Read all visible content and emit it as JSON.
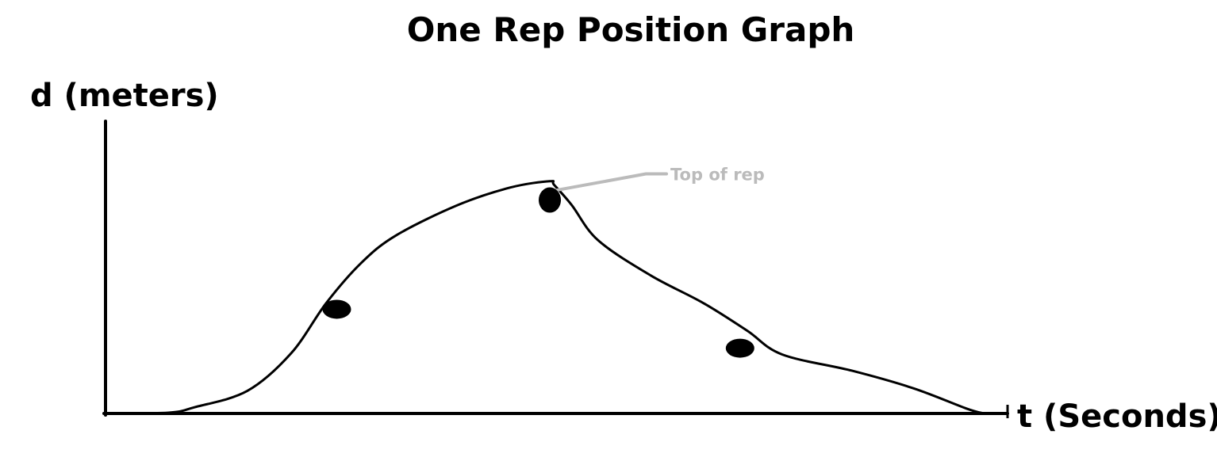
{
  "chart_data": {
    "type": "line",
    "title": "One Rep Position Graph",
    "xlabel": "t (Seconds)",
    "ylabel": "d (meters)",
    "grid": false,
    "legend": "none",
    "axis_ticks": false,
    "series": [
      {
        "color": "#000000",
        "points": [
          [
            0.0,
            0.0
          ],
          [
            0.07,
            0.003
          ],
          [
            0.1,
            0.025
          ],
          [
            0.16,
            0.09
          ],
          [
            0.21,
            0.24
          ],
          [
            0.25,
            0.44
          ],
          [
            0.29,
            0.6
          ],
          [
            0.33,
            0.71
          ],
          [
            0.4,
            0.83
          ],
          [
            0.46,
            0.9
          ],
          [
            0.505,
            0.925
          ],
          [
            0.51,
            0.91
          ],
          [
            0.53,
            0.83
          ],
          [
            0.56,
            0.69
          ],
          [
            0.62,
            0.55
          ],
          [
            0.68,
            0.44
          ],
          [
            0.73,
            0.33
          ],
          [
            0.77,
            0.235
          ],
          [
            0.85,
            0.17
          ],
          [
            0.92,
            0.1
          ],
          [
            0.98,
            0.02
          ],
          [
            1.0,
            0.0
          ]
        ]
      }
    ],
    "marked_points": [
      {
        "x": 0.262,
        "y": 0.415
      },
      {
        "x": 0.505,
        "y": 0.85
      },
      {
        "x": 0.722,
        "y": 0.26
      }
    ],
    "annotations": [
      {
        "text": "Top of rep",
        "target_point": 1,
        "color": "#bbbbbb"
      }
    ],
    "line_color": "#000000",
    "marker_color": "#000000"
  }
}
